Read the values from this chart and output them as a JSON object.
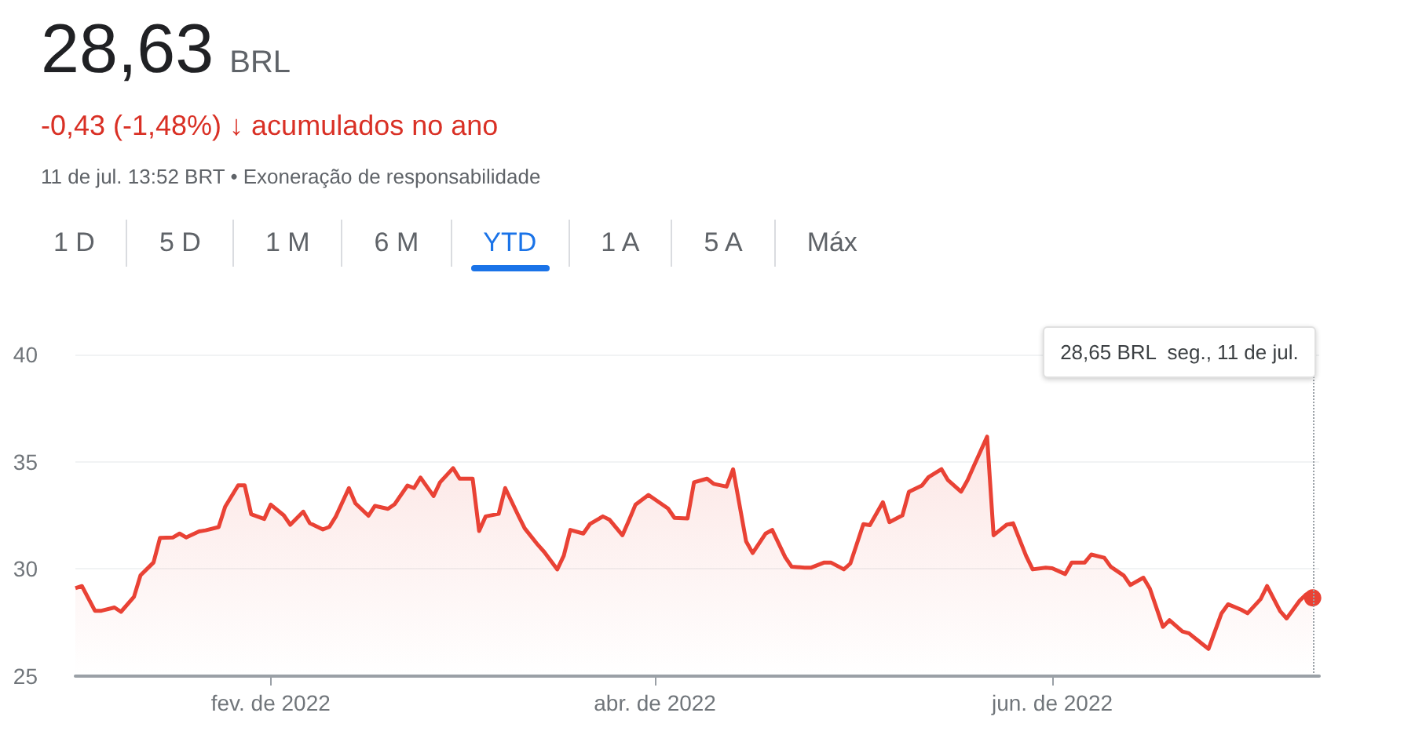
{
  "chart_data": {
    "type": "area",
    "title": "28,63 BRL",
    "subtitle": "-0,43 (-1,48%) ↓ acumulados no ano",
    "annotations": [
      "11 de jul. 13:52 BRT • Exoneração de responsabilidade",
      "1 D",
      "5 D",
      "1 M",
      "6 M",
      "YTD",
      "1 A",
      "5 A",
      "Máx",
      "28,65 BRL  seg., 11 de jul."
    ],
    "x": [
      "2022-01-02",
      "2022-01-03",
      "2022-01-05",
      "2022-01-06",
      "2022-01-08",
      "2022-01-09",
      "2022-01-11",
      "2022-01-12",
      "2022-01-14",
      "2022-01-15",
      "2022-01-17",
      "2022-01-18",
      "2022-01-19",
      "2022-01-21",
      "2022-01-22",
      "2022-01-24",
      "2022-01-25",
      "2022-01-27",
      "2022-01-28",
      "2022-01-29",
      "2022-01-31",
      "2022-02-01",
      "2022-02-03",
      "2022-02-04",
      "2022-02-06",
      "2022-02-07",
      "2022-02-09",
      "2022-02-10",
      "2022-02-11",
      "2022-02-13",
      "2022-02-14",
      "2022-02-16",
      "2022-02-17",
      "2022-02-19",
      "2022-02-20",
      "2022-02-22",
      "2022-02-23",
      "2022-02-24",
      "2022-02-26",
      "2022-02-27",
      "2022-03-01",
      "2022-03-02",
      "2022-03-04",
      "2022-03-05",
      "2022-03-06",
      "2022-03-08",
      "2022-03-09",
      "2022-03-11",
      "2022-03-12",
      "2022-03-14",
      "2022-03-15",
      "2022-03-17",
      "2022-03-18",
      "2022-03-19",
      "2022-03-21",
      "2022-03-22",
      "2022-03-24",
      "2022-03-25",
      "2022-03-27",
      "2022-03-28",
      "2022-03-29",
      "2022-03-31",
      "2022-04-03",
      "2022-04-04",
      "2022-04-06",
      "2022-04-07",
      "2022-04-09",
      "2022-04-10",
      "2022-04-12",
      "2022-04-13",
      "2022-04-15",
      "2022-04-16",
      "2022-04-18",
      "2022-04-19",
      "2022-04-21",
      "2022-04-22",
      "2022-04-24",
      "2022-04-25",
      "2022-04-27",
      "2022-04-28",
      "2022-04-30",
      "2022-05-01",
      "2022-05-03",
      "2022-05-04",
      "2022-05-06",
      "2022-05-07",
      "2022-05-09",
      "2022-05-10",
      "2022-05-12",
      "2022-05-13",
      "2022-05-15",
      "2022-05-16",
      "2022-05-18",
      "2022-05-19",
      "2022-05-20",
      "2022-05-22",
      "2022-05-23",
      "2022-05-25",
      "2022-05-26",
      "2022-05-28",
      "2022-05-29",
      "2022-05-31",
      "2022-06-01",
      "2022-06-03",
      "2022-06-04",
      "2022-06-06",
      "2022-06-07",
      "2022-06-09",
      "2022-06-10",
      "2022-06-12",
      "2022-06-13",
      "2022-06-15",
      "2022-06-16",
      "2022-06-18",
      "2022-06-19",
      "2022-06-21",
      "2022-06-22",
      "2022-06-24",
      "2022-06-25",
      "2022-06-27",
      "2022-06-28",
      "2022-06-30",
      "2022-07-01",
      "2022-07-03",
      "2022-07-04",
      "2022-07-06",
      "2022-07-07",
      "2022-07-09",
      "2022-07-10",
      "2022-07-11"
    ],
    "series": [
      {
        "color": "#e94235",
        "values": [
          29.1,
          29.2,
          28.05,
          28.05,
          28.2,
          28.0,
          28.7,
          29.7,
          30.3,
          31.45,
          31.47,
          31.65,
          31.47,
          31.75,
          31.8,
          31.95,
          32.9,
          33.9,
          33.9,
          32.55,
          32.33,
          33.0,
          32.5,
          32.06,
          32.67,
          32.13,
          31.84,
          31.96,
          32.45,
          33.77,
          33.06,
          32.48,
          32.94,
          32.8,
          33.01,
          33.89,
          33.77,
          34.26,
          33.4,
          34.04,
          34.7,
          34.21,
          34.21,
          31.77,
          32.45,
          32.57,
          33.77,
          32.5,
          31.89,
          31.13,
          30.79,
          29.98,
          30.62,
          31.82,
          31.65,
          32.09,
          32.45,
          32.3,
          31.57,
          32.26,
          32.99,
          33.45,
          32.82,
          32.38,
          32.35,
          34.04,
          34.21,
          33.97,
          33.84,
          34.65,
          31.28,
          30.74,
          31.65,
          31.82,
          30.55,
          30.1,
          30.06,
          30.06,
          30.3,
          30.3,
          29.98,
          30.25,
          32.09,
          32.04,
          33.11,
          32.18,
          32.5,
          33.6,
          33.89,
          34.28,
          34.65,
          34.14,
          33.6,
          34.14,
          34.82,
          36.17,
          31.57,
          32.06,
          32.13,
          30.6,
          29.98,
          30.06,
          30.03,
          29.76,
          30.3,
          30.3,
          30.67,
          30.52,
          30.1,
          29.69,
          29.25,
          29.59,
          29.08,
          27.3,
          27.61,
          27.08,
          27.0,
          26.51,
          26.27,
          27.93,
          28.35,
          28.1,
          27.93,
          28.59,
          29.2,
          28.03,
          27.69,
          28.52,
          28.81,
          28.65
        ]
      }
    ],
    "xlim": [
      "2022-01-02",
      "2022-07-12"
    ],
    "xticks": [
      {
        "value": "2022-02-01",
        "label": "fev. de 2022"
      },
      {
        "value": "2022-04-01",
        "label": "abr. de 2022"
      },
      {
        "value": "2022-06-01",
        "label": "jun. de 2022"
      }
    ],
    "ylim": [
      25,
      40
    ],
    "yticks": [
      25,
      30,
      35,
      40
    ],
    "grid": "y",
    "ref_lines": [
      {
        "axis": "x",
        "value": "2022-07-11",
        "line_style": "dotted",
        "color": "#9aa0a6"
      }
    ]
  }
}
